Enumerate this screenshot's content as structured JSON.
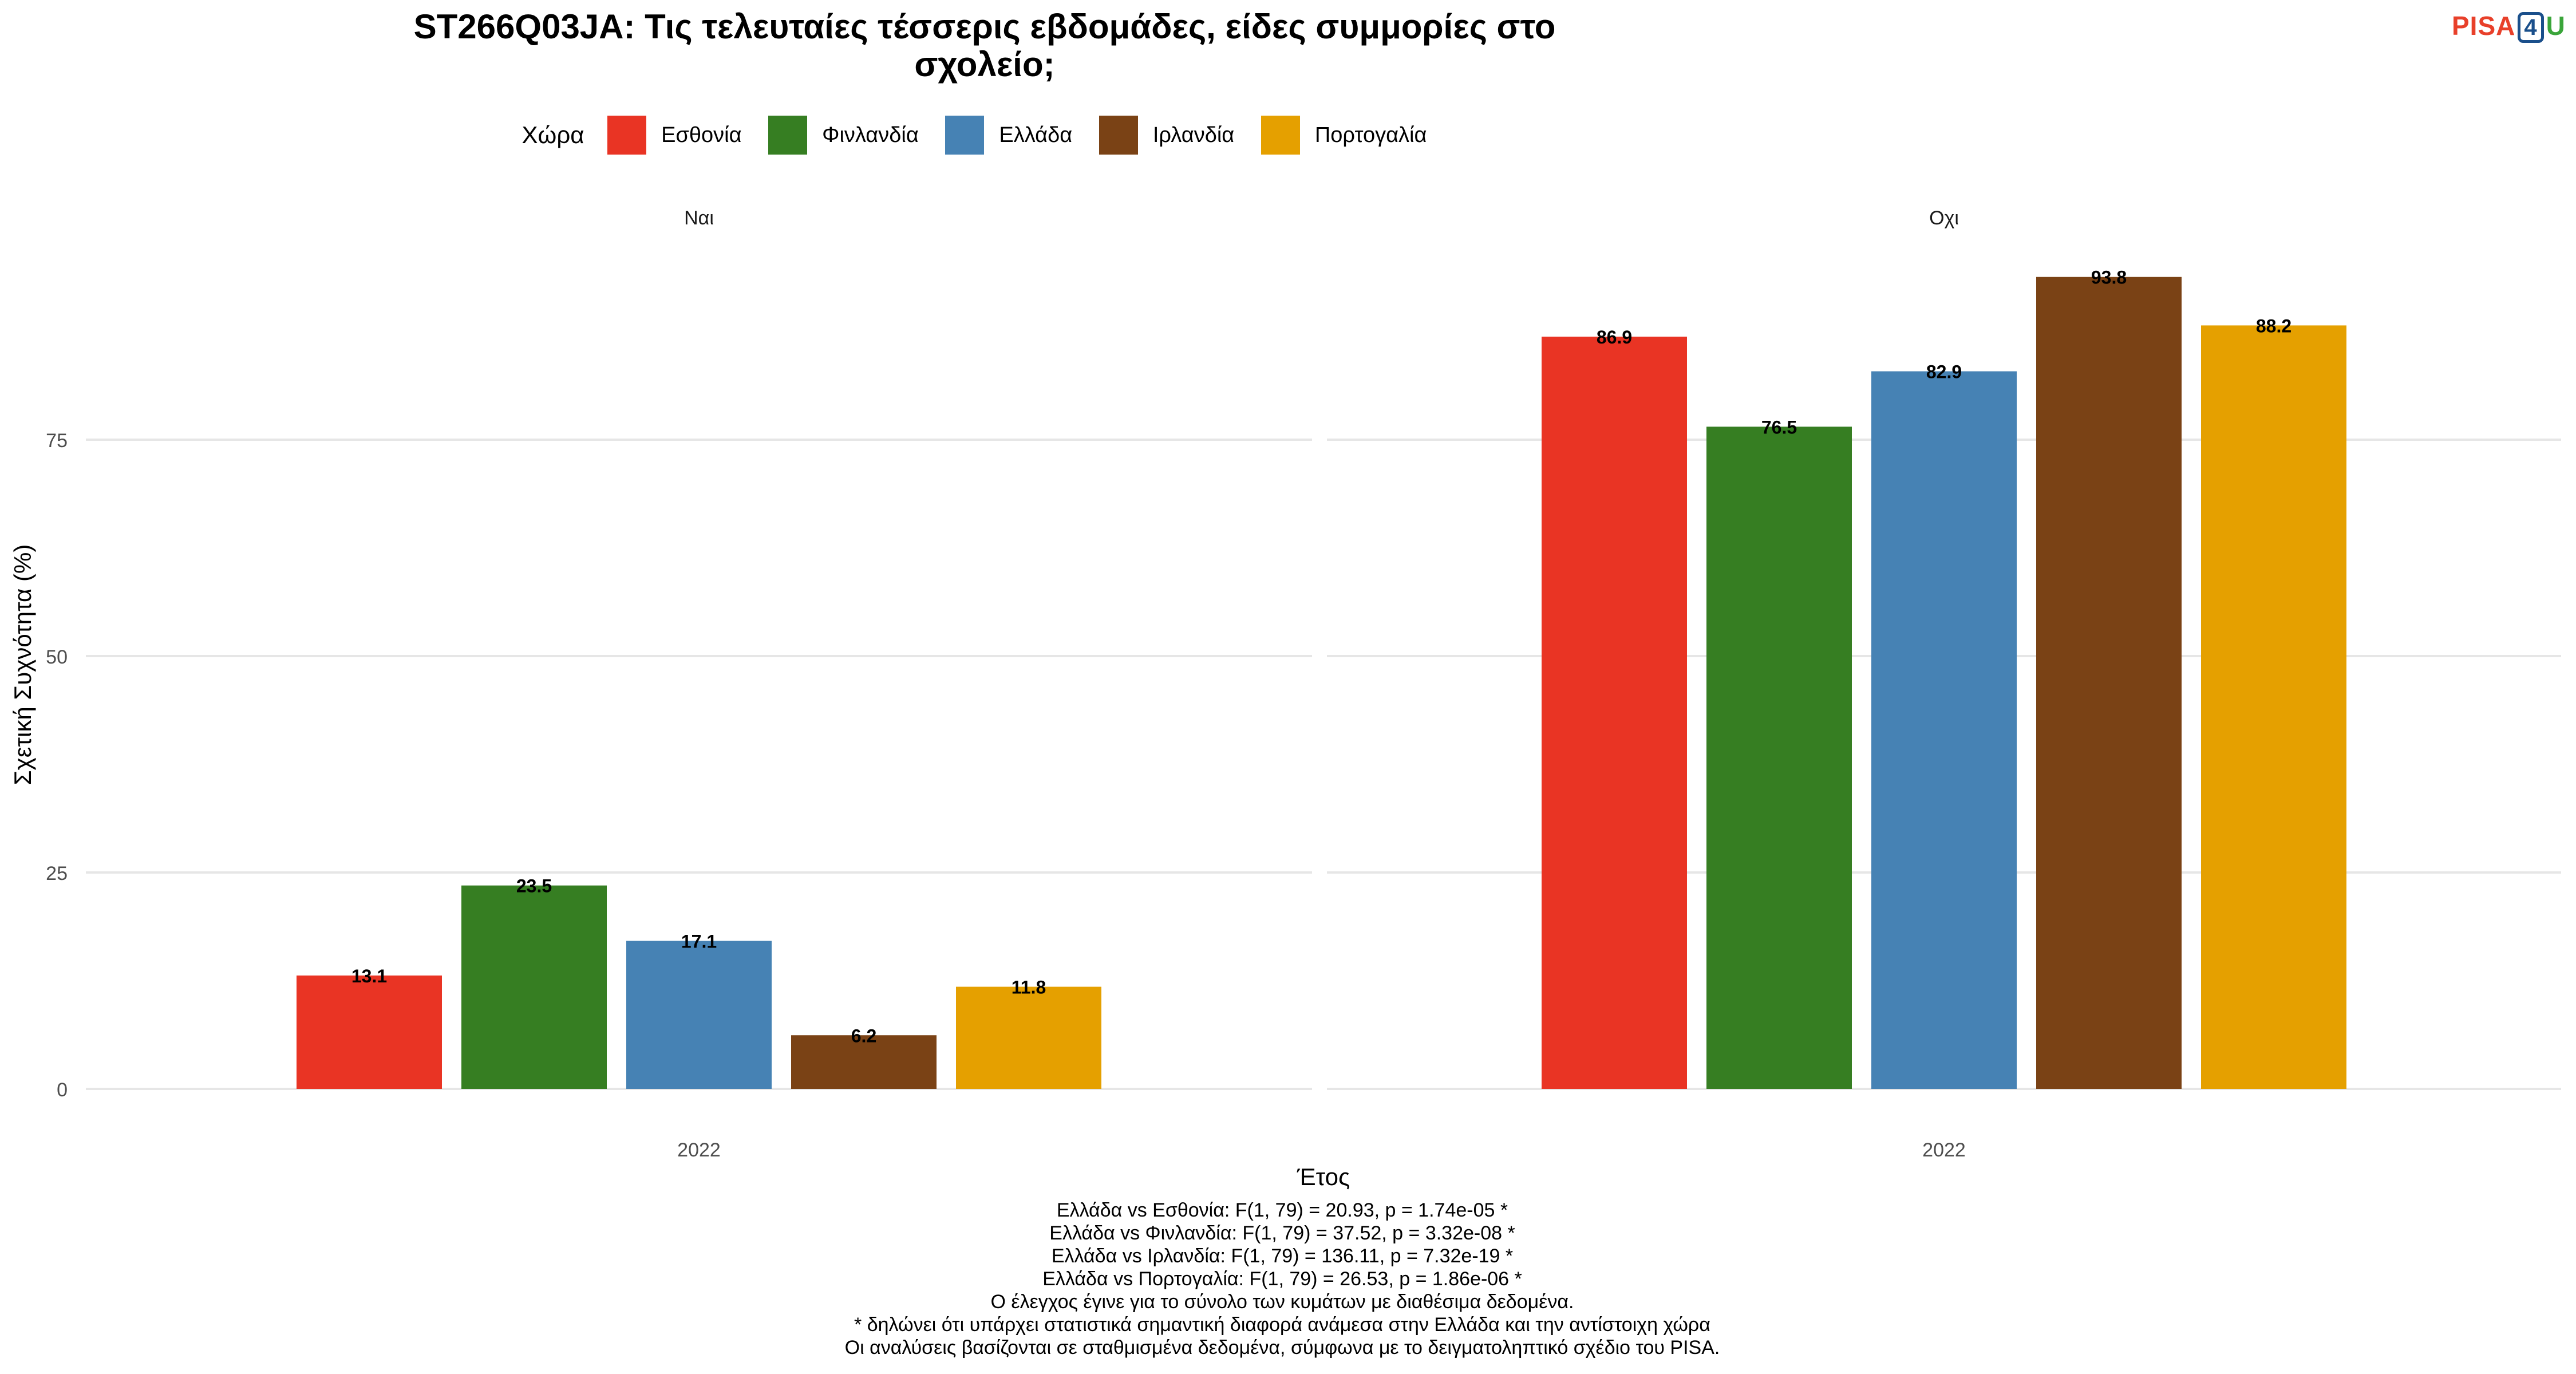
{
  "title_lines": [
    "ST266Q03JA: Τις τελευταίες τέσσερις εβδομάδες, είδες συμμορίες στο",
    "σχολείο;"
  ],
  "logo": {
    "part1": "PISA",
    "part2": "4",
    "part3": "U"
  },
  "legend": {
    "title": "Χώρα",
    "items": [
      {
        "label": "Εσθονία",
        "color": "#e93424"
      },
      {
        "label": "Φινλανδία",
        "color": "#367e22"
      },
      {
        "label": "Ελλάδα",
        "color": "#4682b4"
      },
      {
        "label": "Ιρλανδία",
        "color": "#7a4215"
      },
      {
        "label": "Πορτογαλία",
        "color": "#e5a000"
      }
    ]
  },
  "chart_data": {
    "type": "bar",
    "ylabel": "Σχετική Συχνότητα (%)",
    "xlabel": "Έτος",
    "ylim": [
      0,
      100
    ],
    "yticks": [
      0,
      25,
      50,
      75
    ],
    "grid": true,
    "legend_position": "top",
    "panels": [
      {
        "label": "Ναι",
        "category": "2022",
        "series": [
          {
            "name": "Εσθονία",
            "value": 13.1,
            "label": "13.1"
          },
          {
            "name": "Φινλανδία",
            "value": 23.5,
            "label": "23.5"
          },
          {
            "name": "Ελλάδα",
            "value": 17.1,
            "label": "17.1"
          },
          {
            "name": "Ιρλανδία",
            "value": 6.2,
            "label": "6.2"
          },
          {
            "name": "Πορτογαλία",
            "value": 11.8,
            "label": "11.8"
          }
        ]
      },
      {
        "label": "Οχι",
        "category": "2022",
        "series": [
          {
            "name": "Εσθονία",
            "value": 86.9,
            "label": "86.9"
          },
          {
            "name": "Φινλανδία",
            "value": 76.5,
            "label": "76.5"
          },
          {
            "name": "Ελλάδα",
            "value": 82.9,
            "label": "82.9"
          },
          {
            "name": "Ιρλανδία",
            "value": 93.8,
            "label": "93.8"
          },
          {
            "name": "Πορτογαλία",
            "value": 88.2,
            "label": "88.2"
          }
        ]
      }
    ]
  },
  "footnotes": [
    "Ελλάδα vs Εσθονία: F(1, 79) = 20.93, p = 1.74e-05 *",
    "Ελλάδα vs Φινλανδία: F(1, 79) = 37.52, p = 3.32e-08 *",
    "Ελλάδα vs Ιρλανδία: F(1, 79) = 136.11, p = 7.32e-19 *",
    "Ελλάδα vs Πορτογαλία: F(1, 79) = 26.53, p = 1.86e-06 *",
    "Ο έλεγχος έγινε για το σύνολο των κυμάτων με διαθέσιμα δεδομένα.",
    "* δηλώνει ότι υπάρχει στατιστικά σημαντική διαφορά ανάμεσα στην Ελλάδα και την αντίστοιχη χώρα",
    "Οι αναλύσεις βασίζονται σε σταθμισμένα δεδομένα, σύμφωνα με το δειγματοληπτικό σχέδιο του PISA."
  ]
}
